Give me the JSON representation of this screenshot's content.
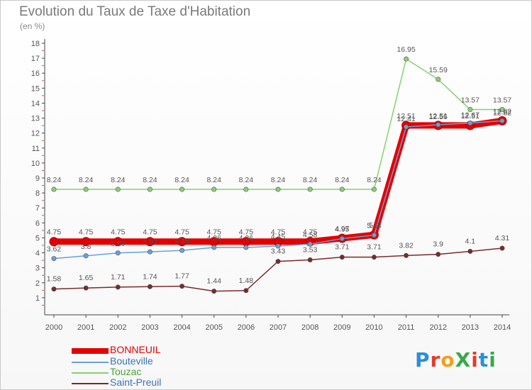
{
  "title": "Evolution du Taux de Taxe d'Habitation",
  "unit_label": "(en %)",
  "logo_text": "ProXiti",
  "chart_data": {
    "type": "line",
    "title": "Evolution du Taux de Taxe d'Habitation",
    "ylabel": "(en %)",
    "xlabel": "",
    "x": [
      2000,
      2001,
      2002,
      2003,
      2004,
      2005,
      2006,
      2007,
      2008,
      2009,
      2010,
      2011,
      2012,
      2013,
      2014
    ],
    "ylim": [
      1,
      18
    ],
    "yticks": [
      1,
      2,
      3,
      4,
      5,
      6,
      7,
      8,
      9,
      10,
      11,
      12,
      13,
      14,
      15,
      16,
      17,
      18
    ],
    "grid": false,
    "legend_position": "bottom-left",
    "series": [
      {
        "name": "BONNEUIL",
        "color": "#e30000",
        "values": [
          4.75,
          4.75,
          4.75,
          4.75,
          4.75,
          4.75,
          4.75,
          4.75,
          4.75,
          4.97,
          5.2,
          12.51,
          12.51,
          12.51,
          12.82
        ],
        "labels": [
          "4.75",
          "4.75",
          "4.75",
          "4.75",
          "4.75",
          "4.75",
          "4.75",
          "4.75",
          "4.75",
          "4.97",
          "5.2",
          "12.51",
          "12.51",
          "12.51",
          "12.82"
        ]
      },
      {
        "name": "Bouteville",
        "color": "#6aa0d8",
        "values": [
          3.62,
          3.8,
          3.99,
          4.07,
          4.16,
          4.36,
          4.36,
          4.45,
          4.58,
          4.95,
          5.18,
          12.41,
          12.56,
          12.67,
          12.82
        ],
        "labels": [
          "3.62",
          "3.8",
          "3.99",
          "4.07",
          "4.16",
          "4.36",
          "4.36",
          "4.45",
          "4.58",
          "4.95",
          "5.18",
          "12.41",
          "12.56",
          "12.67",
          "12.82"
        ]
      },
      {
        "name": "Touzac",
        "color": "#88d070",
        "values": [
          8.24,
          8.24,
          8.24,
          8.24,
          8.24,
          8.24,
          8.24,
          8.24,
          8.24,
          8.24,
          8.24,
          16.95,
          15.59,
          13.57,
          13.57
        ],
        "labels": [
          "8.24",
          "8.24",
          "8.24",
          "8.24",
          "8.24",
          "8.24",
          "8.24",
          "8.24",
          "8.24",
          "8.24",
          "8.24",
          "16.95",
          "15.59",
          "13.57",
          "13.57"
        ]
      },
      {
        "name": "Saint-Preuil",
        "color": "#7a2a2a",
        "values": [
          1.58,
          1.65,
          1.71,
          1.74,
          1.77,
          1.44,
          1.48,
          3.43,
          3.53,
          3.71,
          3.71,
          3.82,
          3.9,
          4.1,
          4.31
        ],
        "labels": [
          "1.58",
          "1.65",
          "1.71",
          "1.74",
          "1.77",
          "1.44",
          "1.48",
          "3.43",
          "3.53",
          "3.71",
          "3.71",
          "3.82",
          "3.9",
          "4.1",
          "4.31"
        ]
      }
    ]
  }
}
